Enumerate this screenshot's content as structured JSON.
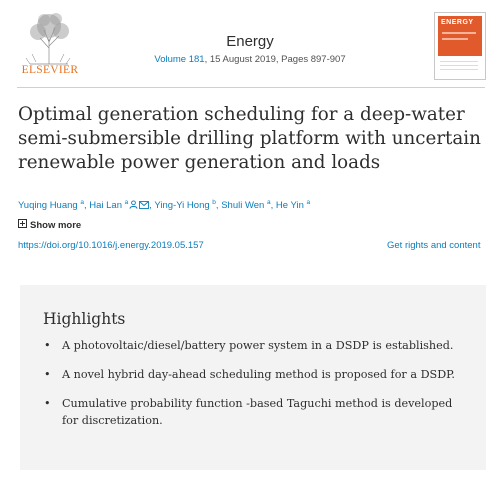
{
  "header": {
    "publisher": "ELSEVIER",
    "journal": "Energy",
    "volume_link": "Volume 181",
    "issue_info": ", 15 August 2019, Pages 897-907",
    "cover_label": "ENERGY"
  },
  "article": {
    "title": "Optimal generation scheduling for a deep-water semi-submersible drilling platform with uncertain renewable power generation and loads",
    "authors": [
      {
        "name": "Yuqing Huang",
        "sup": "a"
      },
      {
        "name": "Hai Lan",
        "sup": "a"
      },
      {
        "name": "Ying-Yi Hong",
        "sup": "b"
      },
      {
        "name": "Shuli Wen",
        "sup": "a"
      },
      {
        "name": "He Yin",
        "sup": "a"
      }
    ],
    "show_more": "Show more",
    "doi": "https://doi.org/10.1016/j.energy.2019.05.157",
    "rights": "Get rights and content"
  },
  "highlights": {
    "heading": "Highlights",
    "bullet": "•",
    "items": [
      "A photovoltaic/diesel/battery power system in a DSDP is established.",
      "A novel hybrid day-ahead scheduling method is proposed for a DSDP.",
      "Cumulative probability function -based Taguchi method is developed for discretization."
    ]
  }
}
